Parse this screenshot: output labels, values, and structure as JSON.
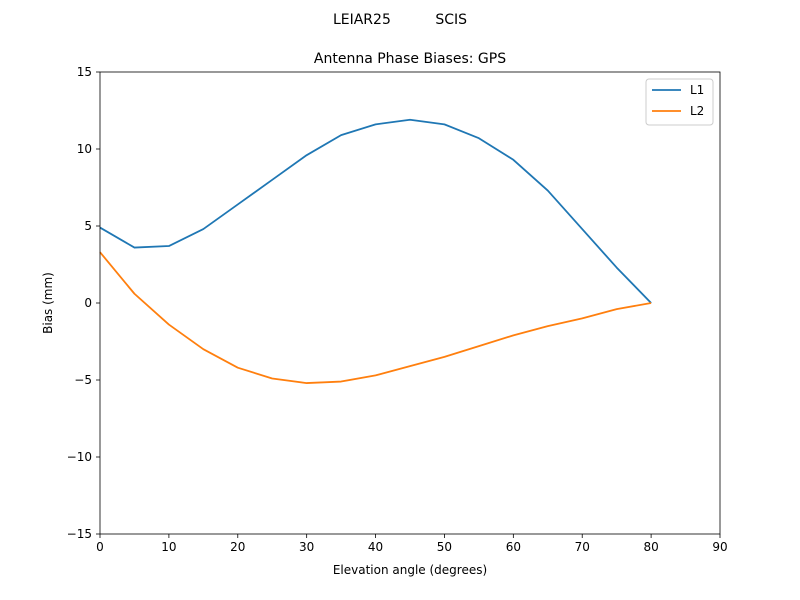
{
  "chart_data": {
    "type": "line",
    "suptitle": "LEIAR25          SCIS",
    "title": "Antenna Phase Biases: GPS",
    "xlabel": "Elevation angle (degrees)",
    "ylabel": "Bias (mm)",
    "xlim": [
      0,
      90
    ],
    "ylim": [
      -15,
      15
    ],
    "xticks": [
      0,
      10,
      20,
      30,
      40,
      50,
      60,
      70,
      80,
      90
    ],
    "yticks": [
      -15,
      -10,
      -5,
      0,
      5,
      10,
      15
    ],
    "ytick_labels": [
      "−15",
      "−10",
      "−5",
      "0",
      "5",
      "10",
      "15"
    ],
    "grid": false,
    "legend": "top-right",
    "x": [
      0,
      5,
      10,
      15,
      20,
      25,
      30,
      35,
      40,
      45,
      50,
      55,
      60,
      65,
      70,
      75,
      80
    ],
    "series": [
      {
        "name": "L1",
        "color": "#1f77b4",
        "values": [
          4.9,
          3.6,
          3.7,
          4.8,
          6.4,
          8.0,
          9.6,
          10.9,
          11.6,
          11.9,
          11.6,
          10.7,
          9.3,
          7.3,
          4.8,
          2.3,
          0.0
        ]
      },
      {
        "name": "L2",
        "color": "#ff7f0e",
        "values": [
          3.3,
          0.6,
          -1.4,
          -3.0,
          -4.2,
          -4.9,
          -5.2,
          -5.1,
          -4.7,
          -4.1,
          -3.5,
          -2.8,
          -2.1,
          -1.5,
          -1.0,
          -0.4,
          0.0
        ]
      }
    ]
  }
}
